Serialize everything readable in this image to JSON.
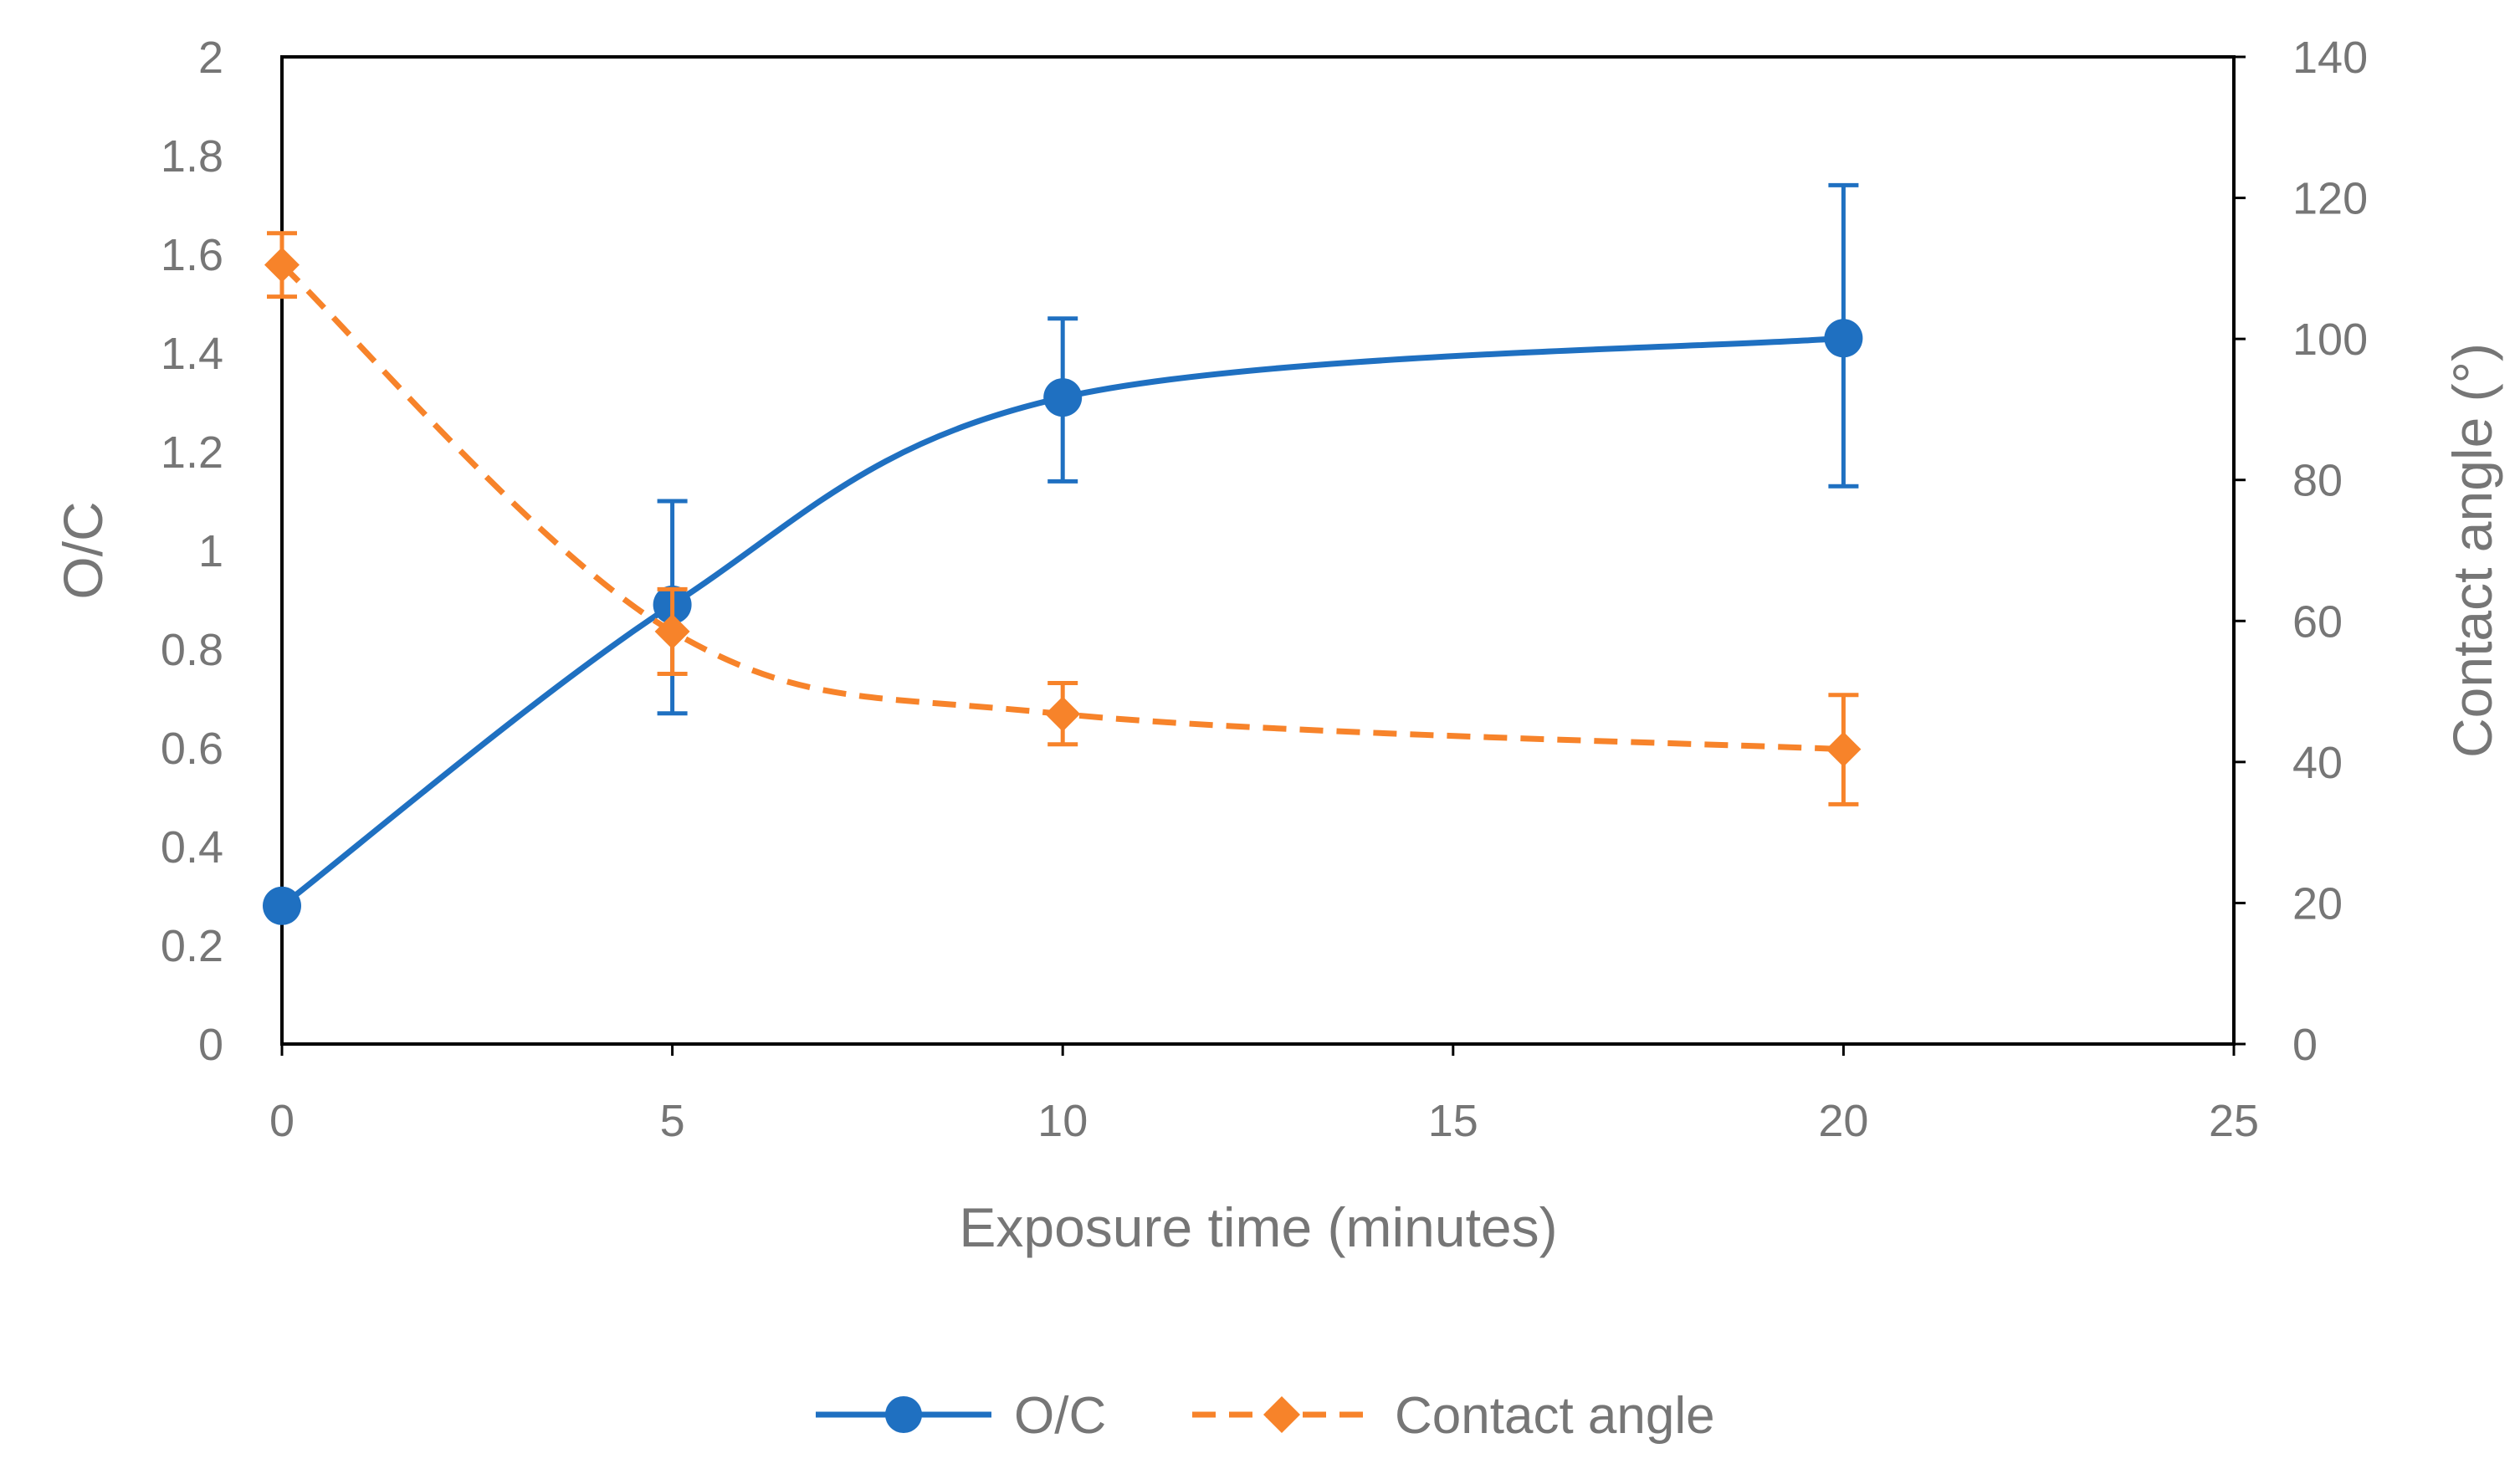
{
  "chart_data": {
    "type": "line",
    "title": "",
    "xlabel": "Exposure time (minutes)",
    "ylabel": "O/C",
    "y2label": "Contact angle (°)",
    "xlim": [
      0,
      25
    ],
    "ylim": [
      0,
      2
    ],
    "y2lim": [
      0,
      140
    ],
    "xticks": [
      "0",
      "5",
      "10",
      "15",
      "20",
      "25"
    ],
    "yticks": [
      "0",
      "0.2",
      "0.4",
      "0.6",
      "0.8",
      "1",
      "1.2",
      "1.4",
      "1.6",
      "1.8",
      "2"
    ],
    "y2ticks": [
      "0",
      "20",
      "40",
      "60",
      "80",
      "100",
      "120",
      "140"
    ],
    "grid": false,
    "legend_position": "bottom",
    "series": [
      {
        "name": "O/C",
        "axis": "left",
        "color": "#1F70C1",
        "line": "solid",
        "marker": "circle",
        "x": [
          0,
          5,
          10,
          20
        ],
        "values": [
          0.28,
          0.89,
          1.31,
          1.43
        ],
        "error_low": [
          0.28,
          0.67,
          1.14,
          1.13
        ],
        "error_high": [
          0.28,
          1.1,
          1.47,
          1.74
        ]
      },
      {
        "name": "Contact angle",
        "axis": "right",
        "color": "#F7832A",
        "line": "dashed",
        "marker": "diamond",
        "x": [
          0,
          5,
          10,
          20
        ],
        "values": [
          110.5,
          58.5,
          46.8,
          41.8
        ],
        "error_low": [
          106,
          52.5,
          42.5,
          34
        ],
        "error_high": [
          115,
          64.5,
          51.2,
          49.5
        ]
      }
    ]
  }
}
